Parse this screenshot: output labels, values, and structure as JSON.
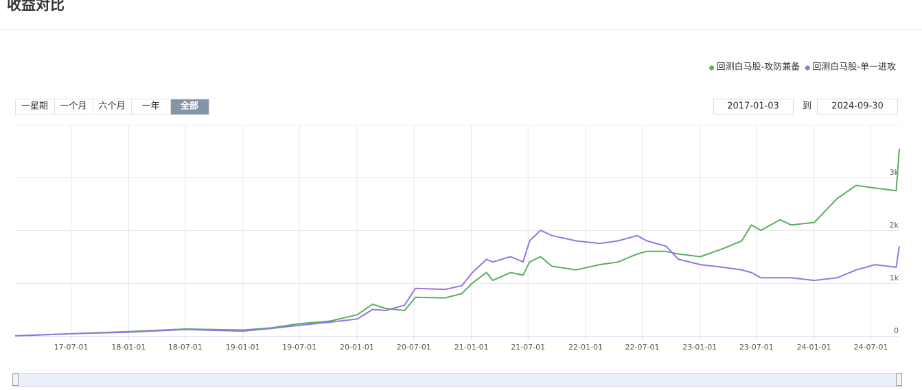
{
  "chart_data": {
    "type": "line",
    "title": "收益对比",
    "controls": {
      "ranges": [
        "一星期",
        "一个月",
        "六个月",
        "一年",
        "全部"
      ],
      "selected": 4,
      "to": "到"
    },
    "x": [
      "2017-01-03",
      "2017-07-03",
      "2018-01-02",
      "2018-07-02",
      "2019-01-02",
      "2019-04-01",
      "2019-07-01",
      "2019-10-08",
      "2020-01-02",
      "2020-02-20",
      "2020-04-01",
      "2020-06-01",
      "2020-07-06",
      "2020-10-09",
      "2020-12-01",
      "2021-01-04",
      "2021-02-18",
      "2021-03-10",
      "2021-05-06",
      "2021-06-15",
      "2021-07-06",
      "2021-08-10",
      "2021-09-15",
      "2021-12-01",
      "2022-02-15",
      "2022-04-15",
      "2022-06-15",
      "2022-07-15",
      "2022-09-15",
      "2022-10-25",
      "2023-01-03",
      "2023-03-15",
      "2023-05-15",
      "2023-06-15",
      "2023-07-15",
      "2023-09-15",
      "2023-10-20",
      "2024-01-02",
      "2024-03-15",
      "2024-05-15",
      "2024-07-15",
      "2024-09-20",
      "2024-09-30"
    ],
    "series": [
      {
        "name": "回测白马股-攻防兼备",
        "color": "#5aae5c",
        "values": [
          0,
          40,
          80,
          130,
          110,
          150,
          230,
          280,
          400,
          600,
          520,
          480,
          730,
          720,
          800,
          1000,
          1200,
          1050,
          1200,
          1150,
          1400,
          1500,
          1320,
          1250,
          1350,
          1400,
          1550,
          1600,
          1600,
          1550,
          1500,
          1650,
          1800,
          2100,
          2000,
          2200,
          2100,
          2150,
          2600,
          2850,
          2800,
          2750,
          3550
        ]
      },
      {
        "name": "回测白马股-单一进攻",
        "color": "#9375e6",
        "values": [
          0,
          40,
          70,
          120,
          90,
          140,
          200,
          260,
          320,
          500,
          480,
          580,
          900,
          880,
          950,
          1200,
          1450,
          1400,
          1500,
          1400,
          1800,
          2000,
          1900,
          1800,
          1750,
          1800,
          1900,
          1800,
          1700,
          1450,
          1350,
          1300,
          1250,
          1200,
          1100,
          1100,
          1100,
          1050,
          1100,
          1250,
          1350,
          1300,
          1700
        ]
      }
    ],
    "xlim": [
      "2017-01-03",
      "2024-09-30"
    ],
    "xticks": [
      {
        "value": "2017-07-01",
        "label": "17-07-01"
      },
      {
        "value": "2018-01-01",
        "label": "18-01-01"
      },
      {
        "value": "2018-07-01",
        "label": "18-07-01"
      },
      {
        "value": "2019-01-01",
        "label": "19-01-01"
      },
      {
        "value": "2019-07-01",
        "label": "19-07-01"
      },
      {
        "value": "2020-01-01",
        "label": "20-01-01"
      },
      {
        "value": "2020-07-01",
        "label": "20-07-01"
      },
      {
        "value": "2021-01-01",
        "label": "21-01-01"
      },
      {
        "value": "2021-07-01",
        "label": "21-07-01"
      },
      {
        "value": "2022-01-01",
        "label": "22-01-01"
      },
      {
        "value": "2022-07-01",
        "label": "22-07-01"
      },
      {
        "value": "2023-01-01",
        "label": "23-01-01"
      },
      {
        "value": "2023-07-01",
        "label": "23-07-01"
      },
      {
        "value": "2024-01-01",
        "label": "24-01-01"
      },
      {
        "value": "2024-07-01",
        "label": "24-07-01"
      }
    ],
    "ylim": [
      0,
      4000
    ],
    "yticks": [
      0,
      {
        "value": 1000,
        "label": "1k"
      },
      {
        "value": 2000,
        "label": "2k"
      },
      {
        "value": 3000,
        "label": "3k"
      }
    ],
    "grid": true,
    "legend": "top-right"
  }
}
